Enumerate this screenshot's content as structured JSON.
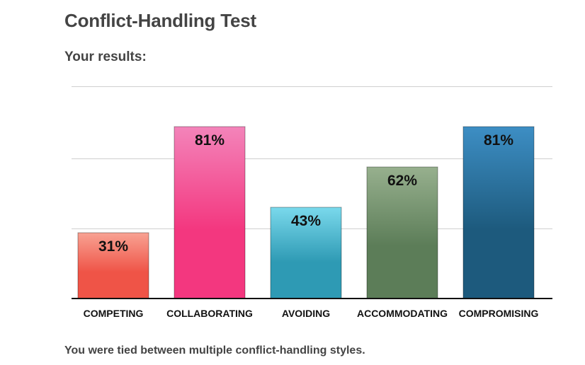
{
  "page": {
    "title": "Conflict-Handling Test",
    "subtitle": "Your results:",
    "footer": "You were tied between multiple conflict-handling styles."
  },
  "chart_data": {
    "type": "bar",
    "title": "Conflict-Handling Test",
    "subtitle": "Your results:",
    "categories": [
      "COMPETING",
      "COLLABORATING",
      "AVOIDING",
      "ACCOMMODATING",
      "COMPROMISING"
    ],
    "values": [
      31,
      81,
      43,
      62,
      81
    ],
    "value_labels": [
      "31%",
      "81%",
      "43%",
      "62%",
      "81%"
    ],
    "ylim": [
      0,
      100
    ],
    "gridlines": [
      33,
      66,
      100
    ],
    "xlabel": "",
    "ylabel": "",
    "colors": [
      {
        "top": "#f8a293",
        "bottom": "#ef5447"
      },
      {
        "top": "#f384ba",
        "bottom": "#f3377f"
      },
      {
        "top": "#7ad9ec",
        "bottom": "#2e9ab4"
      },
      {
        "top": "#97b08e",
        "bottom": "#5c7d58"
      },
      {
        "top": "#3d8ec4",
        "bottom": "#1d5a7d"
      }
    ]
  }
}
